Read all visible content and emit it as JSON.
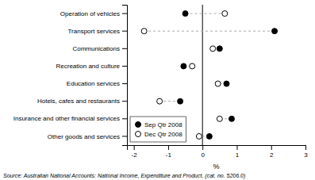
{
  "chart_data": {
    "type": "dumbbell",
    "categories": [
      "Other goods and services",
      "Insurance and other financial services",
      "Hotels, cafes and restaurants",
      "Education services",
      "Recreation and culture",
      "Communications",
      "Transport services",
      "Operation of vehicles"
    ],
    "series": [
      {
        "name": "Sep Qtr 2008",
        "color": "#000000",
        "marker": "circle",
        "values": [
          0.2,
          0.85,
          -0.65,
          0.7,
          -0.55,
          0.5,
          2.1,
          -0.5
        ]
      },
      {
        "name": "Dec Qtr 2008",
        "color": "#ffffff",
        "marker": "circle",
        "values": [
          -0.1,
          0.5,
          -1.25,
          0.45,
          -0.3,
          0.3,
          -1.7,
          0.65
        ]
      }
    ],
    "color": "#aaaaaa",
    "line_style": "dashed",
    "xlabel": "%",
    "xlim": [
      -2.2,
      3.0
    ],
    "xticks": [
      -2,
      -1,
      0,
      1,
      2,
      3
    ],
    "reference_x": 0,
    "legend": "lower left",
    "source": "Source: Australian National Accounts: National Income, Expenditure and Product, (cat. no. 5206.0)"
  }
}
